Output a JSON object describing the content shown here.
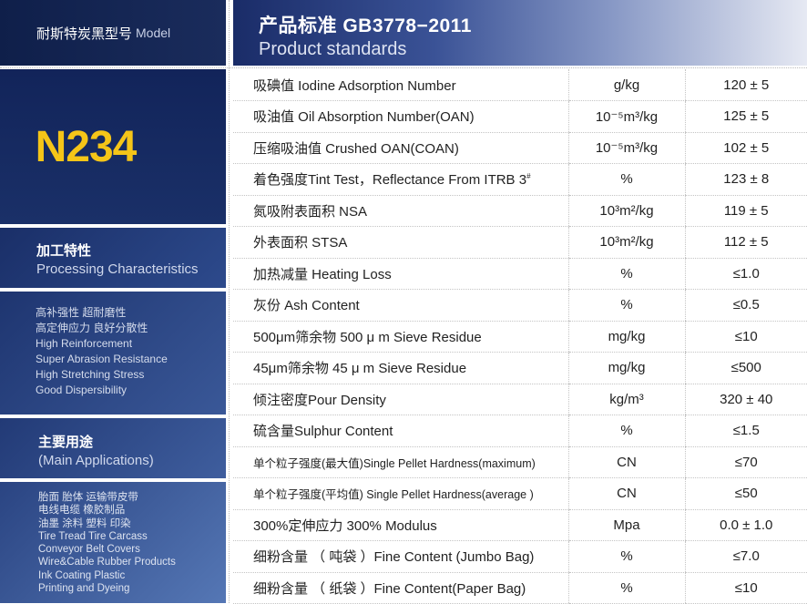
{
  "left": {
    "model_zh": "耐斯特炭黑型号",
    "model_en": "Model",
    "grade": "N234",
    "processing_zh": "加工特性",
    "processing_en": "Processing Characteristics",
    "characteristics": [
      "高补强性  超耐磨性",
      "高定伸应力 良好分散性",
      "High Reinforcement",
      "Super Abrasion Resistance",
      "High Stretching Stress",
      "Good Dispersibility"
    ],
    "applications_zh": "主要用途",
    "applications_en": "(Main Applications)",
    "applications": [
      "胎面 胎体 运输带皮带",
      "电线电缆 橡胶制品",
      "油墨 涂料 塑料 印染",
      "Tire Tread  Tire Carcass",
      "Conveyor Belt Covers",
      "Wire&Cable   Rubber Products",
      "Ink    Coating   Plastic",
      "Printing and Dyeing"
    ]
  },
  "header": {
    "title": "产品标准  GB3778−2011",
    "subtitle": "Product standards"
  },
  "rows": [
    {
      "name": "吸碘值 Iodine Adsorption Number",
      "unit": "g/kg",
      "value": "120 ± 5"
    },
    {
      "name": "吸油值 Oil Absorption Number(OAN)",
      "unit": "10⁻⁵m³/kg",
      "value": "125 ± 5"
    },
    {
      "name": "压缩吸油值 Crushed OAN(COAN)",
      "unit": "10⁻⁵m³/kg",
      "value": "102 ± 5"
    },
    {
      "name": "着色强度Tint Test，Reflectance From ITRB 3",
      "name_sup": "#",
      "unit": "%",
      "value": "123 ± 8"
    },
    {
      "name": "氮吸附表面积 NSA",
      "unit": "10³m²/kg",
      "value": "119 ± 5"
    },
    {
      "name": "外表面积 STSA",
      "unit": "10³m²/kg",
      "value": "112 ± 5"
    },
    {
      "name": "加热减量 Heating Loss",
      "unit": "%",
      "value": "≤1.0"
    },
    {
      "name": "灰份 Ash Content",
      "unit": "%",
      "value": "≤0.5"
    },
    {
      "name": "500μm筛余物 500 μ m Sieve Residue",
      "unit": "mg/kg",
      "value": "≤10"
    },
    {
      "name": "45μm筛余物 45 μ m Sieve Residue",
      "unit": "mg/kg",
      "value": "≤500"
    },
    {
      "name": "倾注密度Pour Density",
      "unit": "kg/m³",
      "value": "320 ± 40"
    },
    {
      "name": "硫含量Sulphur Content",
      "unit": "%",
      "value": "≤1.5"
    },
    {
      "name": "单个粒子强度(最大值)Single Pellet Hardness(maximum)",
      "unit": "CN",
      "value": "≤70"
    },
    {
      "name": "单个粒子强度(平均值) Single Pellet Hardness(average )",
      "unit": "CN",
      "value": "≤50"
    },
    {
      "name": "300%定伸应力 300% Modulus",
      "unit": "Mpa",
      "value": "0.0 ± 1.0"
    },
    {
      "name": "细粉含量 （ 吨袋 ）Fine Content (Jumbo Bag)",
      "unit": "%",
      "value": "≤7.0"
    },
    {
      "name": "细粉含量 （ 纸袋 ）Fine Content(Paper Bag)",
      "unit": "%",
      "value": "≤10"
    }
  ]
}
